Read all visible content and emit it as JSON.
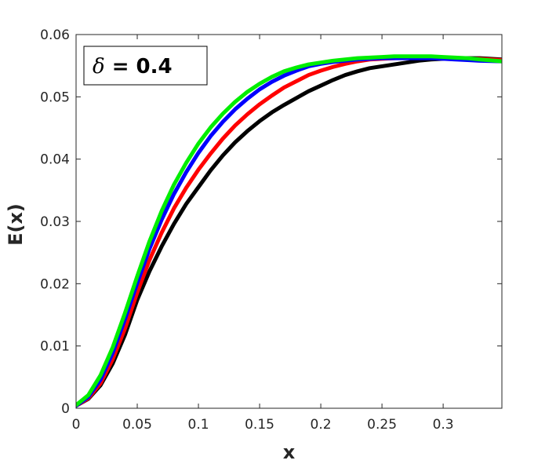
{
  "chart_data": {
    "type": "line",
    "title": "",
    "xlabel": "x",
    "ylabel": "E(x)",
    "xlim": [
      0,
      0.348
    ],
    "ylim": [
      0,
      0.06
    ],
    "xticks": [
      0,
      0.05,
      0.1,
      0.15,
      0.2,
      0.25,
      0.3
    ],
    "xtick_labels": [
      "0",
      "0.05",
      "0.1",
      "0.15",
      "0.2",
      "0.25",
      "0.3"
    ],
    "yticks": [
      0,
      0.01,
      0.02,
      0.03,
      0.04,
      0.05,
      0.06
    ],
    "ytick_labels": [
      "0",
      "0.01",
      "0.02",
      "0.03",
      "0.04",
      "0.05",
      "0.06"
    ],
    "grid": false,
    "legend": "none",
    "annotation": {
      "symbol": "δ",
      "text": " = 0.4",
      "position": "top-left"
    },
    "series": [
      {
        "color": "#000000",
        "x": [
          0,
          0.01,
          0.02,
          0.03,
          0.04,
          0.05,
          0.06,
          0.07,
          0.08,
          0.09,
          0.1,
          0.11,
          0.12,
          0.13,
          0.14,
          0.15,
          0.16,
          0.17,
          0.18,
          0.19,
          0.2,
          0.21,
          0.22,
          0.23,
          0.24,
          0.25,
          0.26,
          0.27,
          0.28,
          0.29,
          0.3,
          0.31,
          0.32,
          0.33,
          0.348
        ],
        "y": [
          0.0004,
          0.0015,
          0.0037,
          0.0072,
          0.0118,
          0.0174,
          0.022,
          0.026,
          0.0296,
          0.0328,
          0.0355,
          0.0382,
          0.0406,
          0.0427,
          0.0445,
          0.0461,
          0.0475,
          0.0487,
          0.0498,
          0.0509,
          0.0518,
          0.0527,
          0.0535,
          0.0541,
          0.0546,
          0.0549,
          0.0552,
          0.0555,
          0.0558,
          0.056,
          0.0561,
          0.0562,
          0.0562,
          0.0562,
          0.056
        ]
      },
      {
        "color": "#ff0000",
        "x": [
          0,
          0.01,
          0.02,
          0.03,
          0.04,
          0.05,
          0.06,
          0.07,
          0.08,
          0.09,
          0.1,
          0.11,
          0.12,
          0.13,
          0.14,
          0.15,
          0.16,
          0.17,
          0.18,
          0.19,
          0.2,
          0.21,
          0.22,
          0.23,
          0.24,
          0.25,
          0.26,
          0.27,
          0.28,
          0.29,
          0.3,
          0.31,
          0.32,
          0.33,
          0.348
        ],
        "y": [
          0.0004,
          0.0016,
          0.004,
          0.0079,
          0.0128,
          0.0186,
          0.0238,
          0.0282,
          0.0321,
          0.0354,
          0.0383,
          0.0409,
          0.0433,
          0.0454,
          0.0472,
          0.0488,
          0.0502,
          0.0515,
          0.0525,
          0.0535,
          0.0542,
          0.0548,
          0.0553,
          0.0557,
          0.056,
          0.0561,
          0.0562,
          0.0563,
          0.0563,
          0.0563,
          0.0562,
          0.0562,
          0.0561,
          0.0561,
          0.0559
        ]
      },
      {
        "color": "#0000ff",
        "x": [
          0,
          0.01,
          0.02,
          0.03,
          0.04,
          0.05,
          0.06,
          0.07,
          0.08,
          0.09,
          0.1,
          0.11,
          0.12,
          0.13,
          0.14,
          0.15,
          0.16,
          0.17,
          0.18,
          0.19,
          0.2,
          0.21,
          0.22,
          0.23,
          0.24,
          0.25,
          0.26,
          0.27,
          0.28,
          0.29,
          0.3,
          0.31,
          0.32,
          0.33,
          0.348
        ],
        "y": [
          0.0004,
          0.0018,
          0.0046,
          0.0089,
          0.0143,
          0.0201,
          0.0256,
          0.0303,
          0.0344,
          0.0379,
          0.041,
          0.0437,
          0.046,
          0.048,
          0.0497,
          0.0512,
          0.0524,
          0.0534,
          0.0542,
          0.0549,
          0.0553,
          0.0556,
          0.0558,
          0.056,
          0.0561,
          0.0562,
          0.0562,
          0.0562,
          0.0562,
          0.0562,
          0.0561,
          0.056,
          0.0559,
          0.0558,
          0.0557
        ]
      },
      {
        "color": "#00ee00",
        "x": [
          0,
          0.01,
          0.02,
          0.03,
          0.04,
          0.05,
          0.06,
          0.07,
          0.08,
          0.09,
          0.1,
          0.11,
          0.12,
          0.13,
          0.14,
          0.15,
          0.16,
          0.17,
          0.18,
          0.19,
          0.2,
          0.21,
          0.22,
          0.23,
          0.24,
          0.25,
          0.26,
          0.27,
          0.28,
          0.29,
          0.3,
          0.31,
          0.32,
          0.33,
          0.348
        ],
        "y": [
          0.0005,
          0.0021,
          0.0053,
          0.0098,
          0.0153,
          0.0212,
          0.0268,
          0.0317,
          0.0359,
          0.0394,
          0.0425,
          0.0451,
          0.0473,
          0.0492,
          0.0508,
          0.0521,
          0.0532,
          0.0541,
          0.0547,
          0.0552,
          0.0555,
          0.0558,
          0.056,
          0.0562,
          0.0563,
          0.0564,
          0.0565,
          0.0565,
          0.0565,
          0.0565,
          0.0564,
          0.0563,
          0.0562,
          0.056,
          0.0557
        ]
      }
    ]
  }
}
